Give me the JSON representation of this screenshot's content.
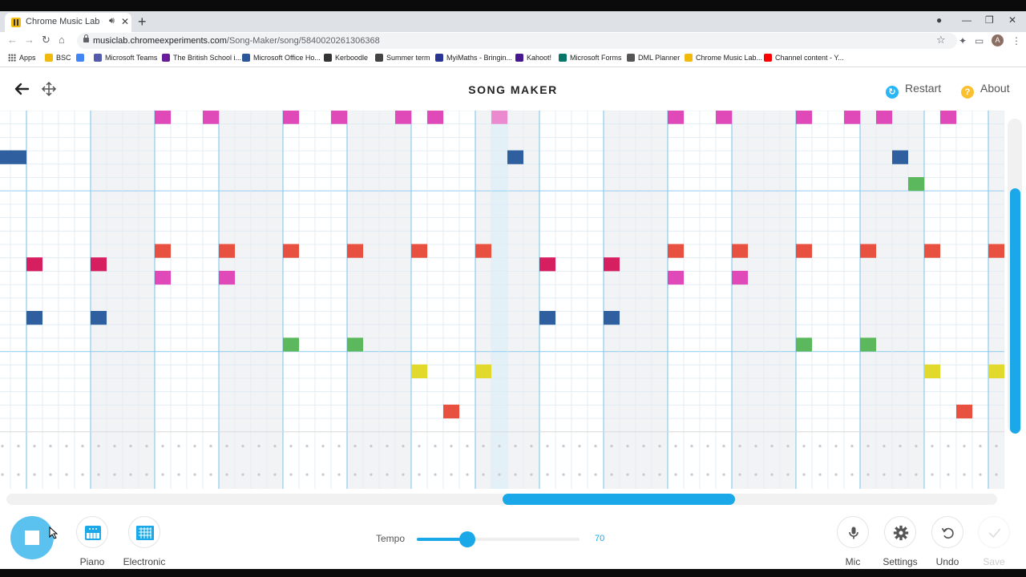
{
  "browser": {
    "tab_title": "Chrome Music Lab - Song Maker",
    "url_host": "musiclab.chromeexperiments.com",
    "url_path": "/Song-Maker/song/5840020261306368",
    "bookmarks": [
      {
        "label": "Apps",
        "color": "#5f6368"
      },
      {
        "label": "BSC",
        "color": "#f2b90f"
      },
      {
        "label": "",
        "color": "#4285f4"
      },
      {
        "label": "Microsoft Teams",
        "color": "#5558af"
      },
      {
        "label": "The British School i...",
        "color": "#6a1b9a"
      },
      {
        "label": "Microsoft Office Ho...",
        "color": "#2b579a"
      },
      {
        "label": "Kerboodle",
        "color": "#333333"
      },
      {
        "label": "Summer term",
        "color": "#444444"
      },
      {
        "label": "MyiMaths - Bringin...",
        "color": "#283593"
      },
      {
        "label": "Kahoot!",
        "color": "#46178f"
      },
      {
        "label": "Microsoft Forms",
        "color": "#077568"
      },
      {
        "label": "DML Planner",
        "color": "#555555"
      },
      {
        "label": "Chrome Music Lab...",
        "color": "#f2b90f"
      },
      {
        "label": "Channel content - Y...",
        "color": "#ff0000"
      }
    ]
  },
  "app": {
    "title": "SONG MAKER",
    "restart_label": "Restart",
    "about_label": "About",
    "restart_icon_color": "#29b6f6",
    "about_icon_color": "#fbc02d"
  },
  "grid": {
    "columns": 63,
    "melody_rows": 24,
    "rhythm_rows": 2,
    "playhead_column": 31,
    "notes": [
      {
        "col": 10,
        "row": 0,
        "color": "#e04ab8"
      },
      {
        "col": 13,
        "row": 0,
        "color": "#e04ab8"
      },
      {
        "col": 18,
        "row": 0,
        "color": "#e04ab8"
      },
      {
        "col": 21,
        "row": 0,
        "color": "#e04ab8"
      },
      {
        "col": 25,
        "row": 0,
        "color": "#e04ab8"
      },
      {
        "col": 27,
        "row": 0,
        "color": "#e04ab8"
      },
      {
        "col": 31,
        "row": 0,
        "color": "#ec8ad0"
      },
      {
        "col": 42,
        "row": 0,
        "color": "#e04ab8"
      },
      {
        "col": 45,
        "row": 0,
        "color": "#e04ab8"
      },
      {
        "col": 50,
        "row": 0,
        "color": "#e04ab8"
      },
      {
        "col": 53,
        "row": 0,
        "color": "#e04ab8"
      },
      {
        "col": 55,
        "row": 0,
        "color": "#e04ab8"
      },
      {
        "col": 59,
        "row": 0,
        "color": "#e04ab8"
      },
      {
        "col": 0,
        "row": 3,
        "color": "#2f5f9e"
      },
      {
        "col": 1,
        "row": 3,
        "color": "#2f5f9e"
      },
      {
        "col": 32,
        "row": 3,
        "color": "#2f5f9e"
      },
      {
        "col": 56,
        "row": 3,
        "color": "#2f5f9e"
      },
      {
        "col": 57,
        "row": 5,
        "color": "#5cb85c"
      },
      {
        "col": 10,
        "row": 10,
        "color": "#e8503f"
      },
      {
        "col": 14,
        "row": 10,
        "color": "#e8503f"
      },
      {
        "col": 18,
        "row": 10,
        "color": "#e8503f"
      },
      {
        "col": 22,
        "row": 10,
        "color": "#e8503f"
      },
      {
        "col": 26,
        "row": 10,
        "color": "#e8503f"
      },
      {
        "col": 30,
        "row": 10,
        "color": "#e8503f"
      },
      {
        "col": 42,
        "row": 10,
        "color": "#e8503f"
      },
      {
        "col": 46,
        "row": 10,
        "color": "#e8503f"
      },
      {
        "col": 50,
        "row": 10,
        "color": "#e8503f"
      },
      {
        "col": 54,
        "row": 10,
        "color": "#e8503f"
      },
      {
        "col": 58,
        "row": 10,
        "color": "#e8503f"
      },
      {
        "col": 62,
        "row": 10,
        "color": "#e8503f"
      },
      {
        "col": 2,
        "row": 11,
        "color": "#d61f5f"
      },
      {
        "col": 6,
        "row": 11,
        "color": "#d61f5f"
      },
      {
        "col": 34,
        "row": 11,
        "color": "#d61f5f"
      },
      {
        "col": 38,
        "row": 11,
        "color": "#d61f5f"
      },
      {
        "col": 10,
        "row": 12,
        "color": "#e04ab8"
      },
      {
        "col": 14,
        "row": 12,
        "color": "#e04ab8"
      },
      {
        "col": 42,
        "row": 12,
        "color": "#e04ab8"
      },
      {
        "col": 46,
        "row": 12,
        "color": "#e04ab8"
      },
      {
        "col": 2,
        "row": 15,
        "color": "#2f5f9e"
      },
      {
        "col": 6,
        "row": 15,
        "color": "#2f5f9e"
      },
      {
        "col": 34,
        "row": 15,
        "color": "#2f5f9e"
      },
      {
        "col": 38,
        "row": 15,
        "color": "#2f5f9e"
      },
      {
        "col": 18,
        "row": 17,
        "color": "#5cb85c"
      },
      {
        "col": 22,
        "row": 17,
        "color": "#5cb85c"
      },
      {
        "col": 50,
        "row": 17,
        "color": "#5cb85c"
      },
      {
        "col": 54,
        "row": 17,
        "color": "#5cb85c"
      },
      {
        "col": 26,
        "row": 19,
        "color": "#e2d92d"
      },
      {
        "col": 30,
        "row": 19,
        "color": "#e2d92d"
      },
      {
        "col": 58,
        "row": 19,
        "color": "#e2d92d"
      },
      {
        "col": 62,
        "row": 19,
        "color": "#e2d92d"
      },
      {
        "col": 28,
        "row": 22,
        "color": "#e8503f"
      },
      {
        "col": 60,
        "row": 22,
        "color": "#e8503f"
      }
    ]
  },
  "controls": {
    "play_state": "stop",
    "instrument_label": "Piano",
    "percussion_label": "Electronic",
    "tempo_label": "Tempo",
    "tempo_value": "70",
    "tempo_fraction": 0.31,
    "mic_label": "Mic",
    "settings_label": "Settings",
    "undo_label": "Undo",
    "save_label": "Save"
  }
}
